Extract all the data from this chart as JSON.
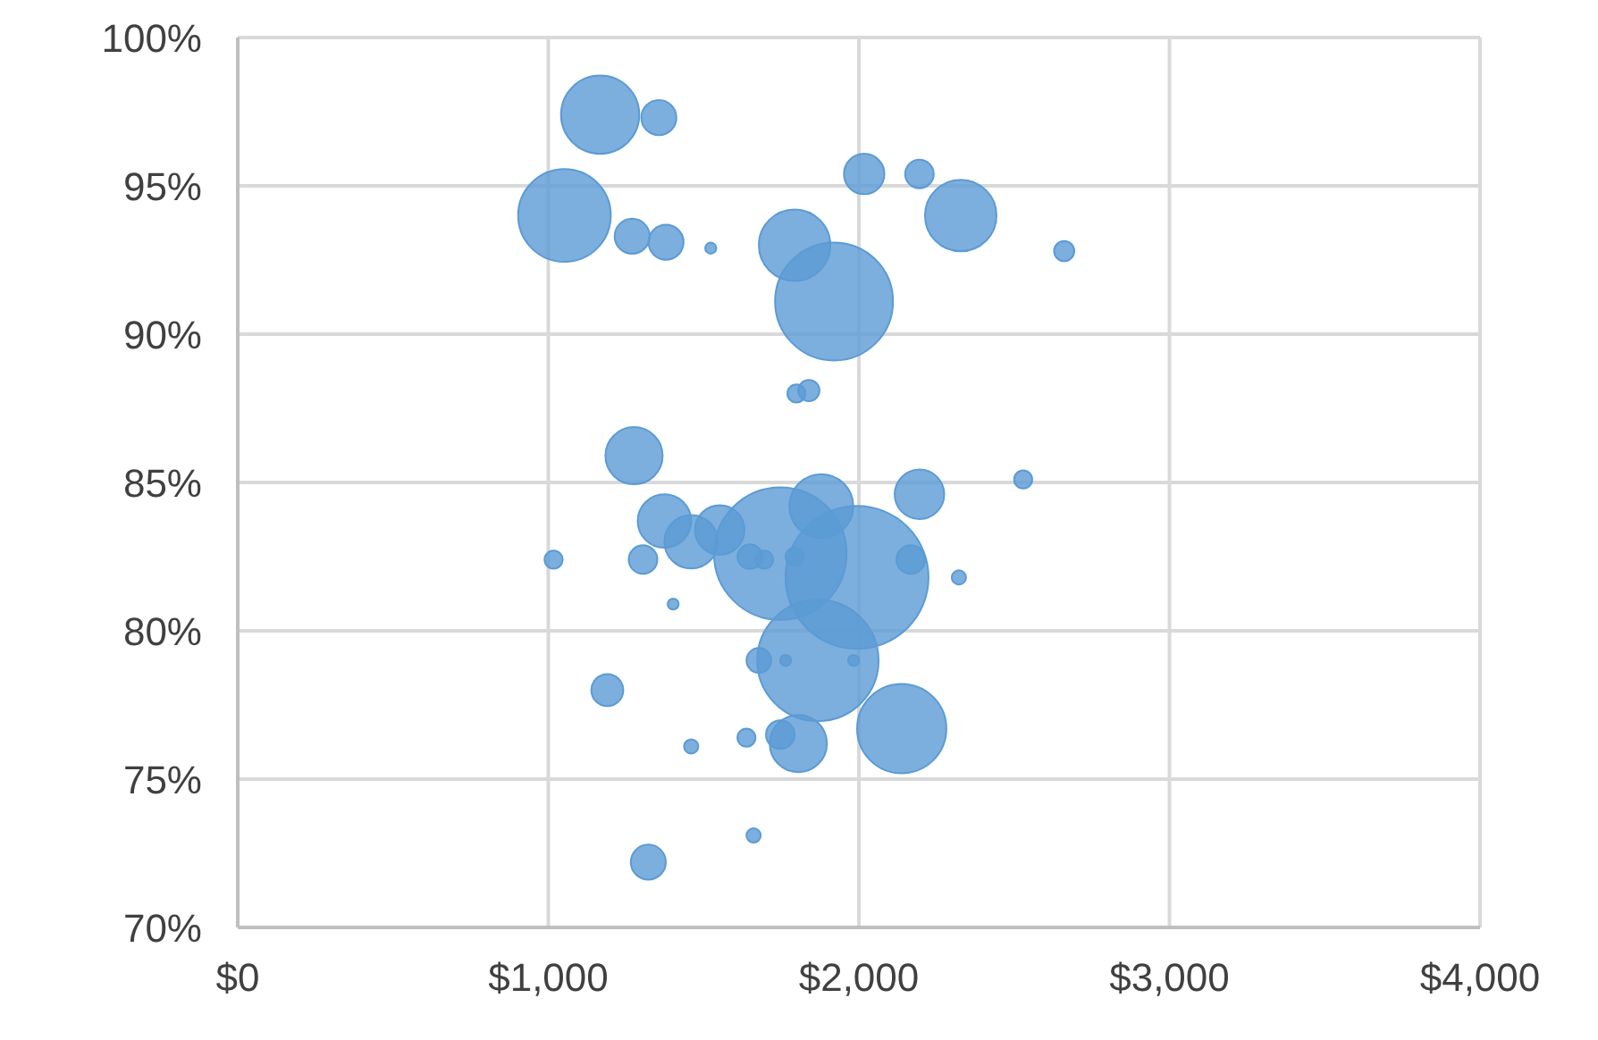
{
  "chart_data": {
    "type": "bubble",
    "x": [
      1167,
      1356,
      1052,
      2017,
      2195,
      2328,
      1270,
      1379,
      1523,
      1793,
      1920,
      2661,
      1799,
      1839,
      1276,
      1374,
      1460,
      1552,
      1305,
      1017,
      1402,
      1649,
      1695,
      1793,
      1747,
      1879,
      2195,
      2529,
      1994,
      2167,
      2322,
      1868,
      1678,
      1764,
      1983,
      1190,
      2138,
      1805,
      1747,
      1638,
      1460,
      1661,
      1322
    ],
    "values": [
      97.4,
      97.3,
      94.0,
      95.4,
      95.4,
      94.0,
      93.3,
      93.1,
      92.9,
      93.0,
      91.1,
      92.8,
      88.0,
      88.1,
      85.9,
      83.7,
      83.0,
      83.4,
      82.4,
      82.4,
      80.9,
      82.5,
      82.4,
      82.5,
      82.6,
      84.2,
      84.6,
      85.1,
      81.8,
      82.4,
      81.8,
      79.0,
      79.0,
      79.0,
      79.0,
      78.0,
      76.7,
      76.2,
      76.5,
      76.4,
      76.1,
      73.1,
      72.2
    ],
    "sizes": [
      0.3,
      0.06,
      0.42,
      0.08,
      0.04,
      0.25,
      0.06,
      0.06,
      0.006,
      0.25,
      0.68,
      0.02,
      0.016,
      0.022,
      0.16,
      0.14,
      0.14,
      0.12,
      0.04,
      0.016,
      0.006,
      0.03,
      0.016,
      0.016,
      0.86,
      0.2,
      0.12,
      0.016,
      1,
      0.04,
      0.01,
      0.72,
      0.03,
      0.006,
      0.006,
      0.05,
      0.39,
      0.16,
      0.04,
      0.016,
      0.01,
      0.01,
      0.06
    ],
    "color": "#5b9bd5",
    "xlim": [
      0,
      4000
    ],
    "xticks": [
      {
        "value": 0,
        "label": "$0"
      },
      {
        "value": 1000,
        "label": "$1,000"
      },
      {
        "value": 2000,
        "label": "$2,000"
      },
      {
        "value": 3000,
        "label": "$3,000"
      },
      {
        "value": 4000,
        "label": "$4,000"
      }
    ],
    "ylim": [
      70,
      100
    ],
    "yticks": [
      {
        "value": 70,
        "label": "70%"
      },
      {
        "value": 75,
        "label": "75%"
      },
      {
        "value": 80,
        "label": "80%"
      },
      {
        "value": 85,
        "label": "85%"
      },
      {
        "value": 90,
        "label": "90%"
      },
      {
        "value": 95,
        "label": "95%"
      },
      {
        "value": 100,
        "label": "100%"
      }
    ],
    "grid": true
  }
}
